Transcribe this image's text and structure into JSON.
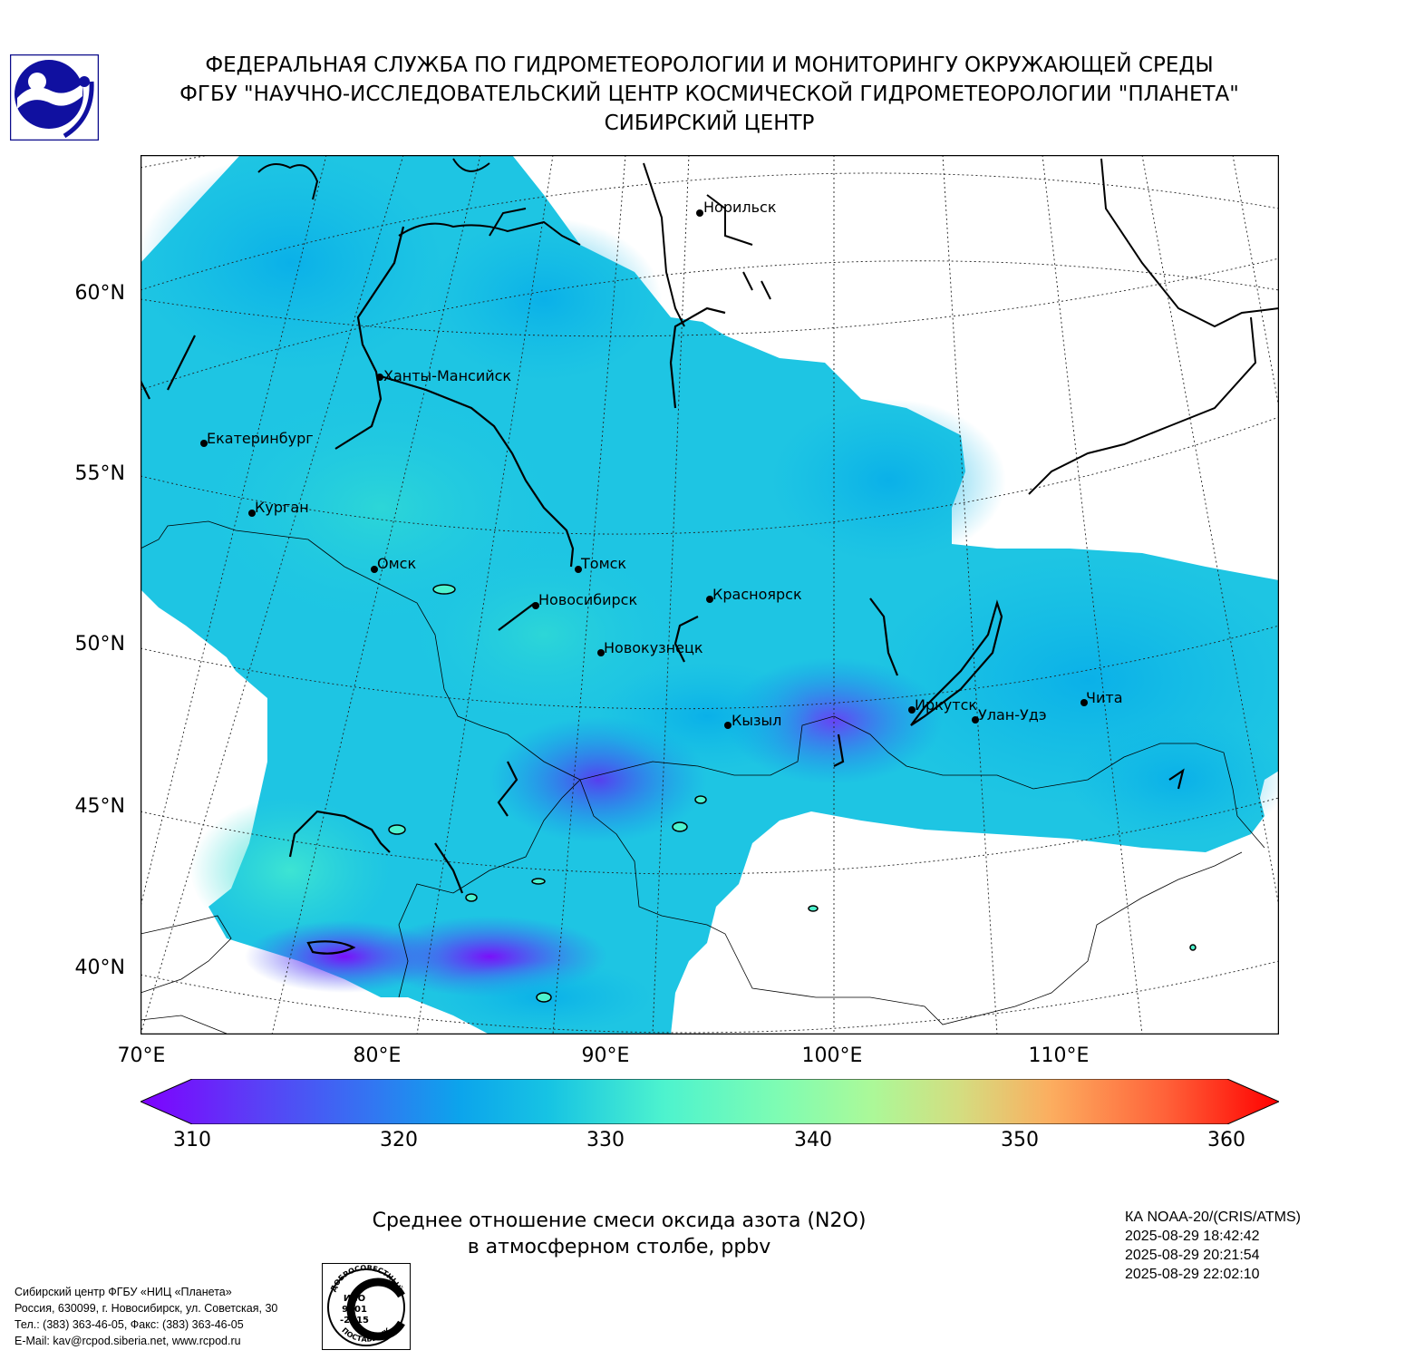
{
  "header": {
    "line1": "ФЕДЕРАЛЬНАЯ СЛУЖБА ПО ГИДРОМЕТЕОРОЛОГИИ И МОНИТОРИНГУ ОКРУЖАЮЩЕЙ СРЕДЫ",
    "line2": "ФГБУ \"НАУЧНО-ИССЛЕДОВАТЕЛЬСКИЙ ЦЕНТР КОСМИЧЕСКОЙ ГИДРОМЕТЕОРОЛОГИИ \"ПЛАНЕТА\"",
    "line3": "СИБИРСКИЙ ЦЕНТР"
  },
  "map": {
    "lat_labels": [
      "60°N",
      "55°N",
      "50°N",
      "45°N",
      "40°N"
    ],
    "lon_labels": [
      "70°E",
      "80°E",
      "90°E",
      "100°E",
      "110°E"
    ],
    "cities": [
      {
        "name": "Норильск"
      },
      {
        "name": "Ханты-Мансийск"
      },
      {
        "name": "Екатеринбург"
      },
      {
        "name": "Курган"
      },
      {
        "name": "Омск"
      },
      {
        "name": "Томск"
      },
      {
        "name": "Новосибирск"
      },
      {
        "name": "Красноярск"
      },
      {
        "name": "Новокузнецк"
      },
      {
        "name": "Кызыл"
      },
      {
        "name": "Иркутск"
      },
      {
        "name": "Улан-Удэ"
      },
      {
        "name": "Чита"
      }
    ]
  },
  "colorbar": {
    "min": 310,
    "max": 360,
    "ticks": [
      "310",
      "320",
      "330",
      "340",
      "350",
      "360"
    ]
  },
  "title": {
    "line1": "Среднее отношение смеси оксида азота (N2O)",
    "line2": "в атмосферном столбе, ppbv"
  },
  "satellite": {
    "name": "КА NOAA-20/(CRIS/ATMS)",
    "times": [
      "2025-08-29 18:42:42",
      "2025-08-29 20:21:54",
      "2025-08-29 22:02:10"
    ]
  },
  "address": {
    "line1": "Сибирский центр ФГБУ «НИЦ «Планета»",
    "line2": "Россия, 630099, г. Новосибирск, ул. Советская, 30",
    "line3": "Тел.: (383) 363-46-05, Факс: (383) 363-46-05",
    "line4": "E-Mail: kav@rcpod.siberia.net, www.rcpod.ru"
  },
  "certificate": {
    "top_text": "ДОБРОСОВЕСТНЫЙ",
    "center_text": "ИСО 9001 -2015",
    "bottom_text": "ПОСТАВЩИК"
  },
  "colors": {
    "low": "#7f00ff",
    "mid_low": "#00b5eb",
    "mid": "#4df3ce",
    "mid_high": "#d4dd80",
    "high": "#ff0000"
  }
}
